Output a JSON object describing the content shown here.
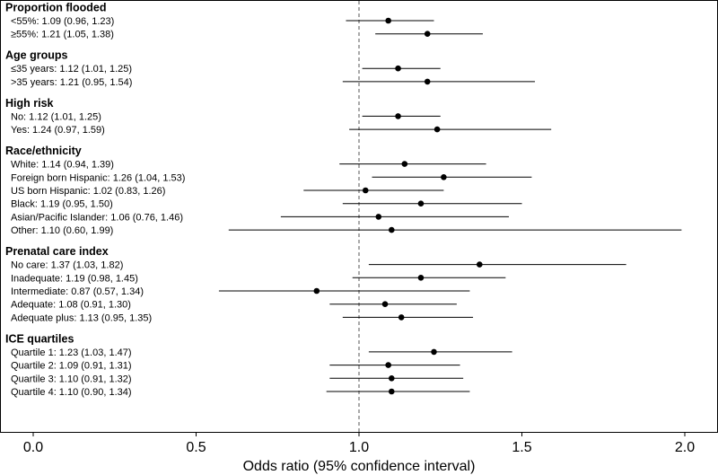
{
  "chart_data": {
    "type": "forest",
    "xlabel": "Odds ratio (95% confidence interval)",
    "xlim": [
      0.0,
      2.0
    ],
    "xticks": [
      "0.0",
      "0.5",
      "1.0",
      "1.5",
      "2.0"
    ],
    "reference_line": 1.0,
    "groups": [
      {
        "title": "Proportion flooded",
        "rows": [
          {
            "label": "<55%: 1.09 (0.96, 1.23)",
            "or": 1.09,
            "lo": 0.96,
            "hi": 1.23
          },
          {
            "label": "≥55%: 1.21 (1.05, 1.38)",
            "or": 1.21,
            "lo": 1.05,
            "hi": 1.38
          }
        ]
      },
      {
        "title": "Age groups",
        "rows": [
          {
            "label": "≤35 years: 1.12 (1.01, 1.25)",
            "or": 1.12,
            "lo": 1.01,
            "hi": 1.25
          },
          {
            "label": ">35 years: 1.21 (0.95, 1.54)",
            "or": 1.21,
            "lo": 0.95,
            "hi": 1.54
          }
        ]
      },
      {
        "title": "High risk",
        "rows": [
          {
            "label": "No: 1.12 (1.01, 1.25)",
            "or": 1.12,
            "lo": 1.01,
            "hi": 1.25
          },
          {
            "label": "Yes: 1.24 (0.97, 1.59)",
            "or": 1.24,
            "lo": 0.97,
            "hi": 1.59
          }
        ]
      },
      {
        "title": "Race/ethnicity",
        "rows": [
          {
            "label": "White: 1.14 (0.94, 1.39)",
            "or": 1.14,
            "lo": 0.94,
            "hi": 1.39
          },
          {
            "label": "Foreign born Hispanic: 1.26 (1.04, 1.53)",
            "or": 1.26,
            "lo": 1.04,
            "hi": 1.53
          },
          {
            "label": "US born Hispanic: 1.02 (0.83, 1.26)",
            "or": 1.02,
            "lo": 0.83,
            "hi": 1.26
          },
          {
            "label": "Black: 1.19 (0.95, 1.50)",
            "or": 1.19,
            "lo": 0.95,
            "hi": 1.5
          },
          {
            "label": "Asian/Pacific Islander: 1.06 (0.76, 1.46)",
            "or": 1.06,
            "lo": 0.76,
            "hi": 1.46
          },
          {
            "label": "Other: 1.10 (0.60, 1.99)",
            "or": 1.1,
            "lo": 0.6,
            "hi": 1.99
          }
        ]
      },
      {
        "title": "Prenatal care index",
        "rows": [
          {
            "label": "No care: 1.37 (1.03, 1.82)",
            "or": 1.37,
            "lo": 1.03,
            "hi": 1.82
          },
          {
            "label": "Inadequate: 1.19 (0.98, 1.45)",
            "or": 1.19,
            "lo": 0.98,
            "hi": 1.45
          },
          {
            "label": "Intermediate: 0.87 (0.57, 1.34)",
            "or": 0.87,
            "lo": 0.57,
            "hi": 1.34
          },
          {
            "label": "Adequate: 1.08 (0.91, 1.30)",
            "or": 1.08,
            "lo": 0.91,
            "hi": 1.3
          },
          {
            "label": "Adequate plus: 1.13 (0.95, 1.35)",
            "or": 1.13,
            "lo": 0.95,
            "hi": 1.35
          }
        ]
      },
      {
        "title": "ICE quartiles",
        "rows": [
          {
            "label": "Quartile 1: 1.23 (1.03, 1.47)",
            "or": 1.23,
            "lo": 1.03,
            "hi": 1.47
          },
          {
            "label": "Quartile 2: 1.09 (0.91, 1.31)",
            "or": 1.09,
            "lo": 0.91,
            "hi": 1.31
          },
          {
            "label": "Quartile 3: 1.10 (0.91, 1.32)",
            "or": 1.1,
            "lo": 0.91,
            "hi": 1.32
          },
          {
            "label": "Quartile 4: 1.10 (0.90, 1.34)",
            "or": 1.1,
            "lo": 0.9,
            "hi": 1.34
          }
        ]
      }
    ]
  }
}
